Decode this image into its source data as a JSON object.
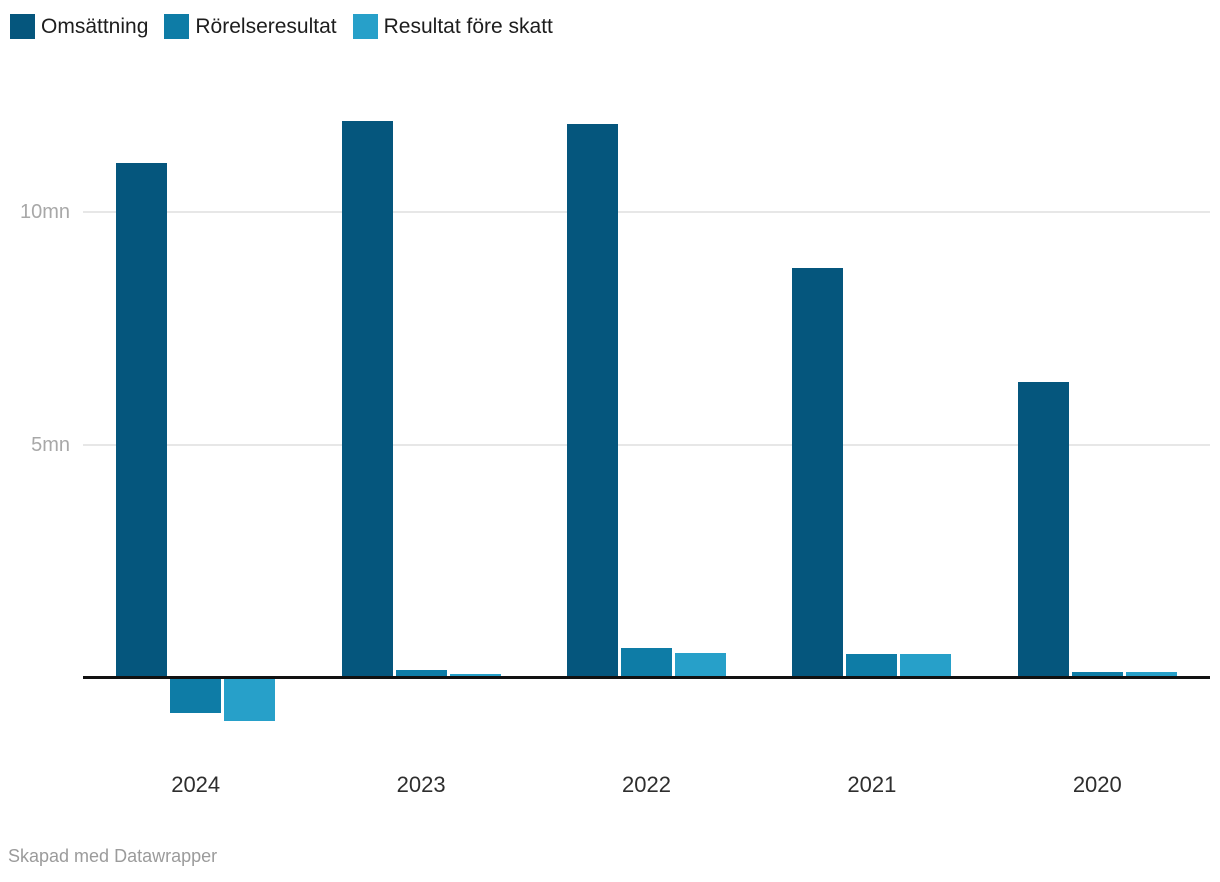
{
  "chart_data": {
    "type": "bar",
    "title": "",
    "unit": "mn",
    "categories": [
      "2024",
      "2023",
      "2022",
      "2021",
      "2020"
    ],
    "series": [
      {
        "name": "Omsättning",
        "color": "#05567d",
        "values": [
          11.05,
          11.95,
          11.9,
          8.8,
          6.35
        ]
      },
      {
        "name": "Rörelseresultat",
        "color": "#0e7ca6",
        "values": [
          -0.78,
          0.15,
          0.62,
          0.5,
          0.11
        ]
      },
      {
        "name": "Resultat före skatt",
        "color": "#27a0c9",
        "values": [
          -0.95,
          0.07,
          0.52,
          0.5,
          0.11
        ]
      }
    ],
    "yticks": [
      {
        "label": "5mn",
        "value": 5
      },
      {
        "label": "10mn",
        "value": 10
      }
    ],
    "ylim": [
      -1.3,
      12.7
    ],
    "grid": "horizontal",
    "legend_position": "top-left",
    "zero_baseline": true
  },
  "footer": {
    "credit": "Skapad med Datawrapper"
  }
}
